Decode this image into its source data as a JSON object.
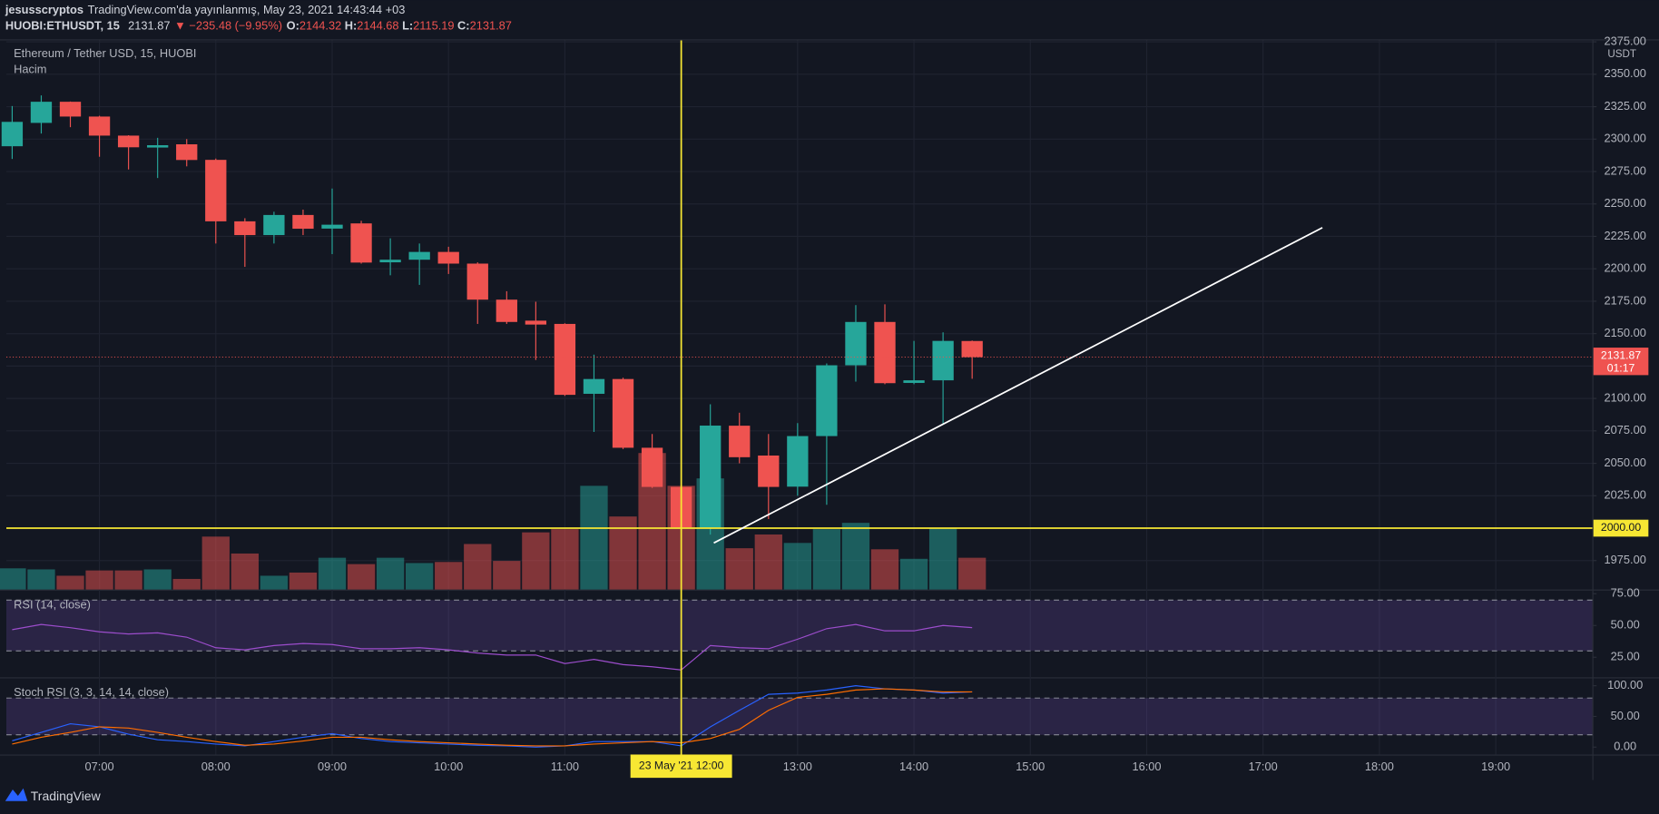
{
  "header": {
    "author": "jesusscryptos",
    "published": "TradingView.com'da yayınlanmış, May 23, 2021 14:43:44 +03",
    "symbol": "HUOBI:ETHUSDT, 15",
    "change": "▼ −235.48 (−9.95%)",
    "o_label": "O:",
    "h_label": "H:",
    "l_label": "L:",
    "c_label": "C:"
  },
  "footer": {
    "brand": "TradingView"
  },
  "chart_data": [
    {
      "type": "candlestick",
      "title": "Ethereum / Tether USD, 15, HUOBI",
      "subtitle": "Hacim",
      "currency": "USDT",
      "x": [
        6.25,
        6.5,
        6.75,
        7,
        7.25,
        7.5,
        7.75,
        8,
        8.25,
        8.5,
        8.75,
        9,
        9.25,
        9.5,
        9.75,
        10,
        10.25,
        10.5,
        10.75,
        11,
        11.25,
        11.5,
        11.75,
        12,
        12.25,
        12.5,
        12.75,
        13,
        13.25,
        13.5,
        13.75,
        14,
        14.25,
        14.5
      ],
      "open": [
        2294.5,
        2312.5,
        2328.8,
        2317.4,
        2302.7,
        2293.5,
        2296,
        2284,
        2236.6,
        2226,
        2241.5,
        2231,
        2235,
        2205,
        2207,
        2213,
        2204,
        2176.2,
        2160,
        2157.5,
        2103.6,
        2115,
        2062,
        2031.8,
        2000,
        2079,
        2056,
        2032,
        2071,
        2125.6,
        2159,
        2112,
        2114,
        2144.32
      ],
      "high": [
        2325.5,
        2333.7,
        2329,
        2318,
        2303,
        2301,
        2300,
        2285,
        2239,
        2244,
        2245.6,
        2261.9,
        2237,
        2223.5,
        2219.5,
        2217,
        2205,
        2182.7,
        2174.6,
        2158,
        2133.8,
        2116,
        2072.6,
        2042.4,
        2095.5,
        2089,
        2072.6,
        2081,
        2127,
        2172,
        2172.6,
        2144.4,
        2151,
        2144.68
      ],
      "low": [
        2284.7,
        2304.3,
        2309.2,
        2286.4,
        2276.6,
        2270,
        2279,
        2219.5,
        2201.5,
        2219.5,
        2226,
        2211.3,
        2204,
        2195,
        2187.6,
        2196,
        2157.5,
        2157.5,
        2129.7,
        2102,
        2074.2,
        2061,
        2031,
        1999,
        1995,
        2050,
        2007,
        2025,
        2018,
        2113,
        2111,
        2111,
        2080.8,
        2115.19
      ],
      "close": [
        2313.3,
        2328.8,
        2317.4,
        2302.7,
        2293.7,
        2295.3,
        2283.9,
        2236.6,
        2226,
        2241.5,
        2230.9,
        2234,
        2204.8,
        2207,
        2213,
        2204,
        2176.2,
        2159,
        2157,
        2102.8,
        2115,
        2062,
        2031.8,
        2000.5,
        2079.1,
        2054.7,
        2031.8,
        2071,
        2125.6,
        2159,
        2111.8,
        2114,
        2144.4,
        2131.87
      ],
      "volume": [
        20,
        19,
        13,
        18,
        18,
        19,
        10,
        50,
        34,
        13,
        16,
        30,
        24,
        30,
        25,
        26,
        43,
        27,
        54,
        57,
        98,
        69,
        129,
        98,
        105,
        39,
        52,
        44,
        57,
        63,
        38,
        29,
        58,
        30
      ],
      "up_color": "#26a69a",
      "down_color": "#ef5350",
      "volume_up_color": "rgba(38,166,154,0.5)",
      "volume_down_color": "rgba(239,83,80,0.5)",
      "xlim": [
        6.2,
        19.83
      ],
      "xticks": [
        {
          "value": 7,
          "label": "07:00"
        },
        {
          "value": 8,
          "label": "08:00"
        },
        {
          "value": 9,
          "label": "09:00"
        },
        {
          "value": 10,
          "label": "10:00"
        },
        {
          "value": 11,
          "label": "11:00"
        },
        {
          "value": 12,
          "label": "12:00"
        },
        {
          "value": 13,
          "label": "13:00"
        },
        {
          "value": 14,
          "label": "14:00"
        },
        {
          "value": 15,
          "label": "15:00"
        },
        {
          "value": 16,
          "label": "16:00"
        },
        {
          "value": 17,
          "label": "17:00"
        },
        {
          "value": 18,
          "label": "18:00"
        },
        {
          "value": 19,
          "label": "19:00"
        }
      ],
      "ylim": [
        1952.7,
        2376.1
      ],
      "yticks": [
        {
          "value": 1975,
          "label": "1975.00"
        },
        {
          "value": 2000,
          "label": "2000.00"
        },
        {
          "value": 2025,
          "label": "2025.00"
        },
        {
          "value": 2050,
          "label": "2050.00"
        },
        {
          "value": 2075,
          "label": "2075.00"
        },
        {
          "value": 2100,
          "label": "2100.00"
        },
        {
          "value": 2125,
          "label": "2125.00"
        },
        {
          "value": 2150,
          "label": "2150.00"
        },
        {
          "value": 2175,
          "label": "2175.00"
        },
        {
          "value": 2200,
          "label": "2200.00"
        },
        {
          "value": 2225,
          "label": "2225.00"
        },
        {
          "value": 2250,
          "label": "2250.00"
        },
        {
          "value": 2275,
          "label": "2275.00"
        },
        {
          "value": 2300,
          "label": "2300.00"
        },
        {
          "value": 2325,
          "label": "2325.00"
        },
        {
          "value": 2350,
          "label": "2350.00"
        },
        {
          "value": 2375,
          "label": "2375.00"
        }
      ],
      "grid": true,
      "grid_color": "#1f2330",
      "countdown": "01:17",
      "annotation_color": "#f7e733",
      "hline": {
        "value": 2000,
        "label": "2000.00"
      },
      "vline": {
        "value": 12,
        "label": "23 May '21  12:00"
      },
      "trend_line": {
        "x": [
          12.28,
          17.51
        ],
        "y": [
          1988.6,
          2231.7
        ],
        "color": "#ffffff"
      }
    },
    {
      "type": "line",
      "title": "RSI (14, close)",
      "x": [
        6.25,
        6.5,
        6.75,
        7,
        7.25,
        7.5,
        7.75,
        8,
        8.25,
        8.5,
        8.75,
        9,
        9.25,
        9.5,
        9.75,
        10,
        10.25,
        10.5,
        10.75,
        11,
        11.25,
        11.5,
        11.75,
        12,
        12.25,
        12.5,
        12.75,
        13,
        13.25,
        13.5,
        13.75,
        14,
        14.25,
        14.5
      ],
      "series": [
        {
          "color": "#9c4dcc",
          "values": [
            46.7,
            50.8,
            48.3,
            45,
            43.3,
            44.2,
            40.8,
            32.5,
            30.8,
            34.2,
            35.8,
            35,
            31.7,
            31.7,
            32.5,
            30.8,
            28.3,
            26.7,
            26.7,
            20,
            23.3,
            19.2,
            17.5,
            15,
            34.2,
            32.5,
            31.7,
            39.2,
            47.5,
            50.8,
            45.8,
            45.8,
            50,
            48.3
          ]
        }
      ],
      "band": [
        30,
        70
      ],
      "band_color": "rgba(126,87,194,0.22)",
      "ylim": [
        9.2,
        77.5
      ],
      "yticks": [
        {
          "value": 25,
          "label": "25.00"
        },
        {
          "value": 50,
          "label": "50.00"
        },
        {
          "value": 75,
          "label": "75.00"
        }
      ],
      "grid": false
    },
    {
      "type": "line",
      "title": "Stoch RSI (3, 3, 14, 14, close)",
      "x": [
        6.25,
        6.5,
        6.75,
        7,
        7.25,
        7.5,
        7.75,
        8,
        8.25,
        8.5,
        8.75,
        9,
        9.25,
        9.5,
        9.75,
        10,
        10.25,
        10.5,
        10.75,
        11,
        11.25,
        11.5,
        11.75,
        12,
        12.25,
        12.5,
        12.75,
        13,
        13.25,
        13.5,
        13.75,
        14,
        14.25,
        14.5
      ],
      "series": [
        {
          "color": "#2962ff",
          "values": [
            10.3,
            24,
            38,
            33,
            21,
            12,
            9,
            5,
            2,
            9,
            16,
            22,
            14,
            9,
            7,
            5,
            3,
            2,
            0,
            2,
            9,
            9,
            9,
            2,
            33,
            60,
            86,
            88,
            93,
            100,
            95,
            93,
            88,
            90
          ]
        },
        {
          "color": "#ff6d00",
          "values": [
            5,
            16,
            24,
            33,
            31,
            24,
            16,
            9,
            3,
            5,
            10,
            16,
            16,
            12,
            9,
            7,
            5,
            3,
            2,
            2,
            5,
            7,
            9,
            7,
            14,
            29,
            60,
            81,
            86,
            93,
            95,
            93,
            90,
            90
          ]
        }
      ],
      "band": [
        20,
        80
      ],
      "band_color": "rgba(126,87,194,0.22)",
      "ylim": [
        -12.1,
        112
      ],
      "yticks": [
        {
          "value": 0,
          "label": "0.00"
        },
        {
          "value": 50,
          "label": "50.00"
        },
        {
          "value": 100,
          "label": "100.00"
        }
      ],
      "grid": false
    }
  ]
}
